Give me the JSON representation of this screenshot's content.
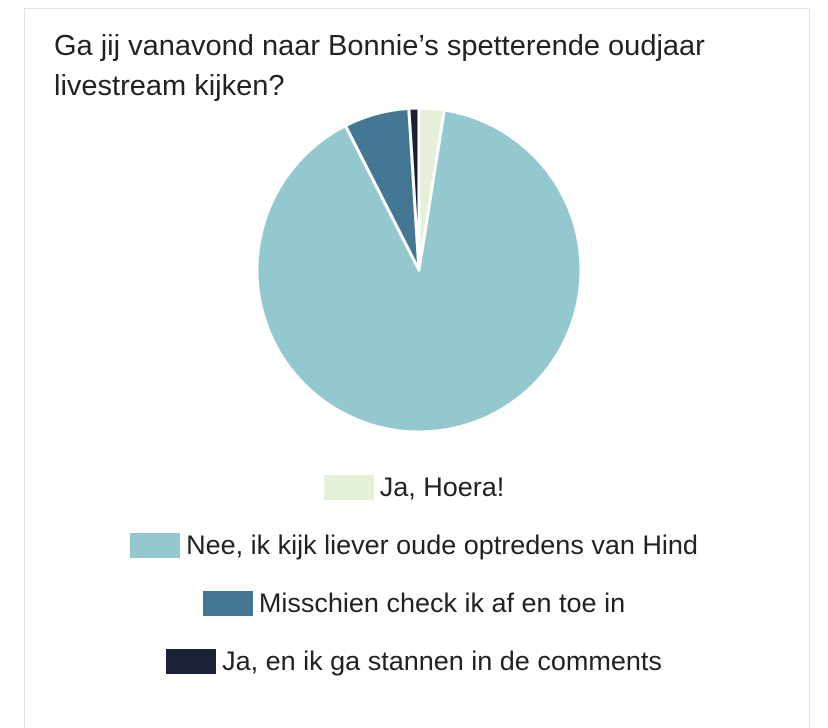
{
  "chart_data": {
    "type": "pie",
    "title": "Ga jij vanavond naar Bonnie’s spetterende oudjaar livestream kijken?",
    "legend_position": "bottom",
    "slices": [
      {
        "label": "Ja, Hoera!",
        "value": 2.5,
        "color": "#e5f0d8"
      },
      {
        "label": "Nee, ik kijk liever oude optredens van Hind",
        "value": 90,
        "color": "#93c8ce"
      },
      {
        "label": "Misschien check ik af en toe in",
        "value": 6.5,
        "color": "#447794"
      },
      {
        "label": "Ja, en ik ga stannen in de comments",
        "value": 1,
        "color": "#1a2036"
      }
    ]
  }
}
